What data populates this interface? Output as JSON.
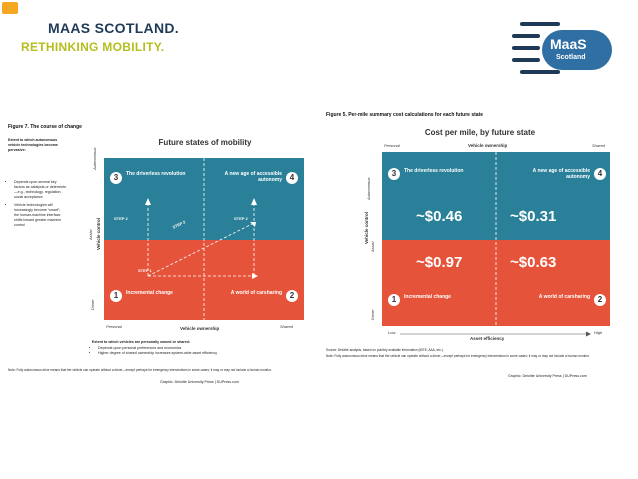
{
  "header": {
    "line1": "MAAS SCOTLAND.",
    "line2": "RETHINKING MOBILITY."
  },
  "logo": {
    "word": "MaaS",
    "sub": "Scotland"
  },
  "left": {
    "caption": "Figure 7. The course of change",
    "sidebar_title": "Extent to which autonomous vehicle technologies become pervasive:",
    "bullets": [
      "Depends upon several key factors as catalysts or deterrents—e.g., technology, regulation, social acceptance",
      "Vehicle technologies will increasingly become “smart”; the human-machine interface shifts toward greater machine control"
    ],
    "title": "Future states of mobility",
    "yaxis_label": "Vehicle control",
    "ytick_top": "Autonomous",
    "ytick_mid": "Assist",
    "ytick_bot": "Driver",
    "xaxis_label": "Vehicle ownership",
    "xtick_left": "Personal",
    "xtick_right": "Shared",
    "quadrants": {
      "q1": {
        "num": "1",
        "label": "Incremental change"
      },
      "q2": {
        "num": "2",
        "label": "A world of carsharing"
      },
      "q3": {
        "num": "3",
        "label": "The driverless revolution"
      },
      "q4": {
        "num": "4",
        "label": "A new age of accessible autonomy"
      }
    },
    "steps": {
      "s1": "STEP 1",
      "s2a": "STEP 2",
      "s2b": "STEP 2",
      "s2c": "STEP 2"
    },
    "below_title": "Extent to which vehicles are personally owned or shared:",
    "below_bullets": [
      "Depends upon personal preferences and economics",
      "Higher degree of shared ownership increases system-wide asset efficiency"
    ],
    "note": "Note: Fully autonomous drive means that the vehicle can operate without a driver—except perhaps for emergency interventions in some cases; it may or may not include a human monitor.",
    "credit": "Graphic: Deloitte University Press | DUPress.com"
  },
  "right": {
    "caption": "Figure 5. Per-mile summary cost calculations for each future state",
    "title": "Cost per mile, by future state",
    "top_axis_label": "Vehicle ownership",
    "top_left": "Personal",
    "top_right": "Shared",
    "yaxis_label": "Vehicle control",
    "ytick_top": "Autonomous",
    "ytick_mid": "Assist",
    "ytick_bot": "Driver",
    "bottom_axis_label": "Asset efficiency",
    "bottom_left": "Low",
    "bottom_right": "High",
    "quadrants": {
      "q1": {
        "num": "1",
        "label": "Incremental change",
        "cost": "~$0.97"
      },
      "q2": {
        "num": "2",
        "label": "A world of carsharing",
        "cost": "~$0.63"
      },
      "q3": {
        "num": "3",
        "label": "The driverless revolution",
        "cost": "~$0.46"
      },
      "q4": {
        "num": "4",
        "label": "A new age of accessible autonomy",
        "cost": "~$0.31"
      }
    },
    "source": "Source: Deloitte analysis, based on publicly available information (IEEE, AAA, etc.).",
    "note": "Note: Fully autonomous drive means that the vehicle can operate without a driver—except perhaps for emergency interventions in some cases; it may or may not include a human monitor.",
    "credit": "Graphic: Deloitte University Press | DUPress.com"
  },
  "colors": {
    "teal": "#2a8098",
    "orange": "#e5533a",
    "navy": "#1f3a57",
    "lime": "#b6bd1e"
  }
}
